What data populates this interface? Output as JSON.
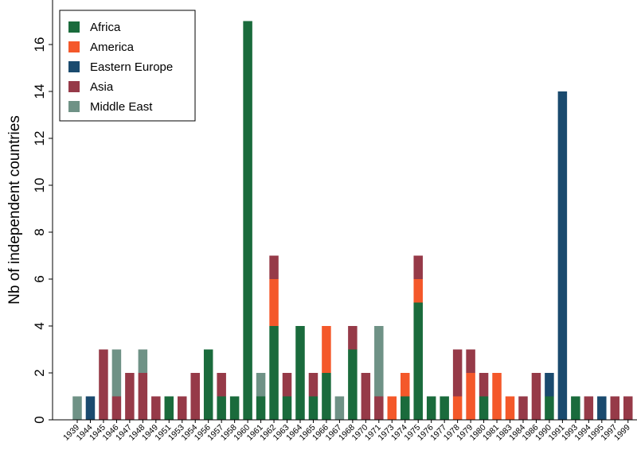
{
  "chart_data": {
    "type": "bar",
    "stacked": true,
    "title": "",
    "xlabel": "",
    "ylabel": "Nb of independent countries",
    "ylim": [
      0,
      17
    ],
    "yticks": [
      0,
      2,
      4,
      6,
      8,
      10,
      12,
      14,
      16
    ],
    "grid": false,
    "legend": "top-left",
    "categories": [
      "1939",
      "1944",
      "1945",
      "1946",
      "1947",
      "1948",
      "1949",
      "1951",
      "1953",
      "1954",
      "1956",
      "1957",
      "1958",
      "1960",
      "1961",
      "1962",
      "1963",
      "1964",
      "1965",
      "1966",
      "1967",
      "1968",
      "1970",
      "1971",
      "1973",
      "1974",
      "1975",
      "1976",
      "1977",
      "1978",
      "1979",
      "1980",
      "1981",
      "1983",
      "1984",
      "1986",
      "1990",
      "1991",
      "1993",
      "1994",
      "1995",
      "1997",
      "1999"
    ],
    "series": [
      {
        "name": "Africa",
        "color": "#1a6b3c",
        "values": [
          0,
          0,
          0,
          0,
          0,
          0,
          0,
          1,
          0,
          0,
          3,
          1,
          1,
          17,
          1,
          4,
          1,
          4,
          1,
          2,
          0,
          3,
          0,
          0,
          0,
          1,
          5,
          1,
          1,
          0,
          0,
          1,
          0,
          0,
          0,
          0,
          1,
          0,
          1,
          0,
          0,
          0,
          0
        ]
      },
      {
        "name": "America",
        "color": "#f4582a",
        "values": [
          0,
          0,
          0,
          0,
          0,
          0,
          0,
          0,
          0,
          0,
          0,
          0,
          0,
          0,
          0,
          2,
          0,
          0,
          0,
          2,
          0,
          0,
          0,
          0,
          1,
          1,
          1,
          0,
          0,
          1,
          2,
          0,
          2,
          1,
          0,
          0,
          0,
          0,
          0,
          0,
          0,
          0,
          0
        ]
      },
      {
        "name": "Eastern Europe",
        "color": "#1a4a6e",
        "values": [
          0,
          1,
          0,
          0,
          0,
          0,
          0,
          0,
          0,
          0,
          0,
          0,
          0,
          0,
          0,
          0,
          0,
          0,
          0,
          0,
          0,
          0,
          0,
          0,
          0,
          0,
          0,
          0,
          0,
          0,
          0,
          0,
          0,
          0,
          0,
          0,
          1,
          14,
          0,
          0,
          1,
          0,
          0
        ]
      },
      {
        "name": "Asia",
        "color": "#963a48",
        "values": [
          0,
          0,
          3,
          1,
          2,
          2,
          1,
          0,
          1,
          2,
          0,
          1,
          0,
          0,
          0,
          1,
          1,
          0,
          1,
          0,
          0,
          1,
          2,
          1,
          0,
          0,
          1,
          0,
          0,
          2,
          1,
          1,
          0,
          0,
          1,
          2,
          0,
          0,
          0,
          1,
          0,
          1,
          1
        ]
      },
      {
        "name": "Middle East",
        "color": "#6f9286",
        "values": [
          1,
          0,
          0,
          2,
          0,
          1,
          0,
          0,
          0,
          0,
          0,
          0,
          0,
          0,
          1,
          0,
          0,
          0,
          0,
          0,
          1,
          0,
          0,
          3,
          0,
          0,
          0,
          0,
          0,
          0,
          0,
          0,
          0,
          0,
          0,
          0,
          0,
          0,
          0,
          0,
          0,
          0,
          0
        ]
      }
    ]
  }
}
